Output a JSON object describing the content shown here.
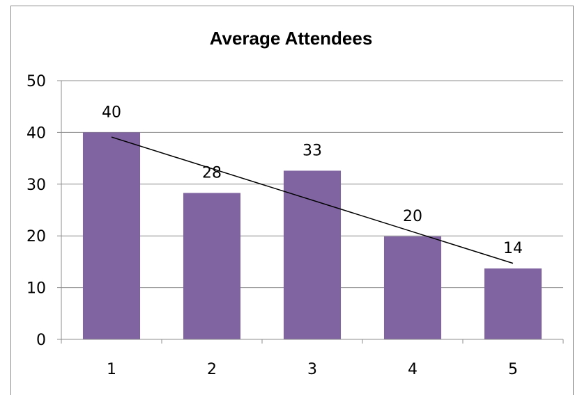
{
  "chart_data": {
    "type": "bar",
    "title": "Average Attendees",
    "xlabel": "",
    "ylabel": "",
    "categories": [
      "1",
      "2",
      "3",
      "4",
      "5"
    ],
    "values": [
      40,
      28.3,
      32.6,
      19.9,
      13.7
    ],
    "data_labels": [
      "40",
      "28",
      "33",
      "20",
      "14"
    ],
    "ylim": [
      0,
      50
    ],
    "yticks": [
      "0",
      "10",
      "20",
      "30",
      "40",
      "50"
    ],
    "grid": true,
    "legend": "none",
    "trendline": "linear",
    "bar_color": "#8064a2",
    "trendline_color": "#000000"
  }
}
